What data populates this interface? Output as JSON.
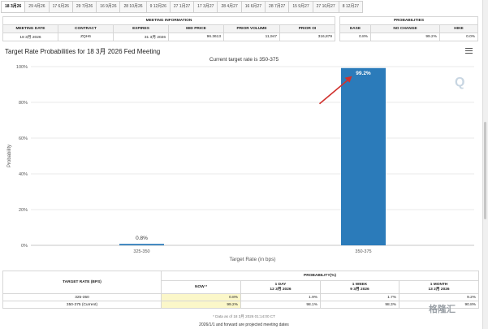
{
  "tabs": [
    "18 3月26",
    "29 4月26",
    "17 6月26",
    "29 7月26",
    "16 9月26",
    "28 10月26",
    "9 12月26",
    "27 1月27",
    "17 3月27",
    "28 4月27",
    "16 6月27",
    "28 7月27",
    "15 9月27",
    "27 10月27",
    "8 12月27"
  ],
  "meeting_info": {
    "header": "MEETING INFORMATION",
    "columns": [
      "MEETING DATE",
      "CONTRACT",
      "EXPIRES",
      "MID PRICE",
      "PRIOR VOLUME",
      "PRIOR OI"
    ],
    "values": [
      "18 3月 2026",
      "ZQH6",
      "31 3月 2026",
      "96.3613",
      "11,947",
      "316,879"
    ]
  },
  "probabilities": {
    "header": "PROBABILITIES",
    "columns": [
      "EASE",
      "NO CHANGE",
      "HIKE"
    ],
    "values": [
      "0.8%",
      "99.2%",
      "0.0%"
    ]
  },
  "chart_title": "Target Rate Probabilities for 18 3月 2026 Fed Meeting",
  "chart_subtitle": "Current target rate is 350-375",
  "chart_data": {
    "type": "bar",
    "categories": [
      "325-350",
      "350-375"
    ],
    "values": [
      0.8,
      99.2
    ],
    "value_labels": [
      "0.8%",
      "99.2%"
    ],
    "xlabel": "Target Rate (in bps)",
    "ylabel": "Probability",
    "ylim": [
      0,
      100
    ],
    "y_ticks": [
      "0%",
      "20%",
      "40%",
      "60%",
      "80%",
      "100%"
    ],
    "y_tick_values": [
      0,
      20,
      40,
      60,
      80,
      100
    ],
    "grid": true,
    "bar_color": "#2b7bba",
    "arrow_color": "#d0312d"
  },
  "bottom_table": {
    "col_target": "TARGET RATE (BPS)",
    "col_prob": "PROBABILITY(%)",
    "sub": [
      {
        "title": "NOW *",
        "date": ""
      },
      {
        "title": "1 DAY",
        "date": "12 3月 2026"
      },
      {
        "title": "1 WEEK",
        "date": "9 3月 2026"
      },
      {
        "title": "1 MONTH",
        "date": "13 2月 2026"
      }
    ],
    "rows": [
      {
        "rate": "325-350",
        "vals": [
          "0.8%",
          "1.9%",
          "1.7%",
          "9.2%"
        ]
      },
      {
        "rate": "350-375 (Current)",
        "vals": [
          "99.2%",
          "98.1%",
          "98.3%",
          "90.8%"
        ]
      }
    ]
  },
  "footnote": "* Data as of 18 3月 2026 01:14:00 CT",
  "footer": "2026/1/1 and forward are projected meeting dates",
  "watermark_q": "Q",
  "watermark_logo": "格隆汇"
}
